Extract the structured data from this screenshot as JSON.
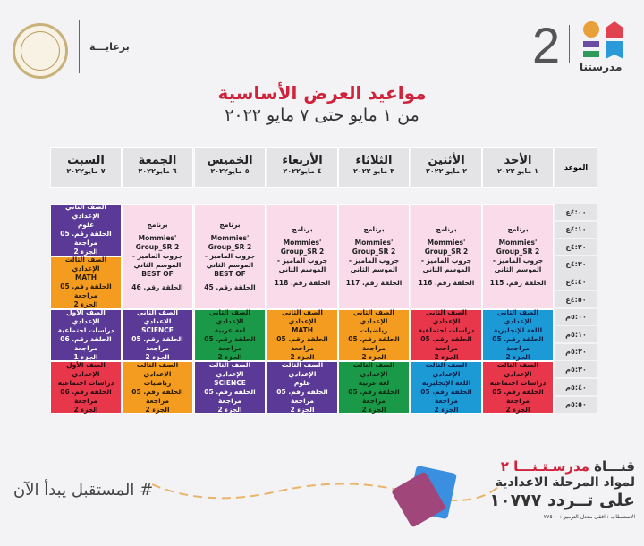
{
  "header": {
    "logo_number": "2",
    "brand": "مدرستنا",
    "sponsor": "برعايـــة",
    "title": "مواعيد العرض الأساسية",
    "subtitle": "من ١ مايو حتى ٧ مايو ٢٠٢٢"
  },
  "colors": {
    "title": "#d0223a",
    "pink": "#f9dbe9",
    "blue": "#1c9ad6",
    "red": "#e8374a",
    "orange": "#f39c1f",
    "green": "#1a9a48",
    "purple": "#5b3a97"
  },
  "table": {
    "time_header": "الموعد",
    "days": [
      {
        "name": "الأحد",
        "date": "١ مايو ٢٠٢٢"
      },
      {
        "name": "الأثنين",
        "date": "٢ مايو ٢٠٢٢"
      },
      {
        "name": "الثلاثاء",
        "date": "٣ مايو ٢٠٢٢"
      },
      {
        "name": "الأربعاء",
        "date": "٤ مايو٢٠٢٢"
      },
      {
        "name": "الخميس",
        "date": "٥ مايو٢٠٢٢"
      },
      {
        "name": "الجمعة",
        "date": "٦ مايو٢٠٢٢"
      },
      {
        "name": "السبت",
        "date": "٧ مايو٢٠٢٢"
      }
    ],
    "times": [
      "٤:٠٠ع",
      "٤:١٠ع",
      "٤:٢٠ع",
      "٤:٣٠ع",
      "٤:٤٠ع",
      "٤:٥٠ع",
      "٥:٠٠م",
      "٥:١٠م",
      "٥:٢٠م",
      "٥:٣٠م",
      "٥:٤٠م",
      "٥:٥٠م"
    ],
    "cells": [
      {
        "day": 0,
        "row": 0,
        "span": 6,
        "color": "pink",
        "lines": [
          "برنامج",
          "Mommies' Group_SR 2",
          "جروب الماميز - الموسم الثاني",
          "الحلقة رقم. 115"
        ]
      },
      {
        "day": 1,
        "row": 0,
        "span": 6,
        "color": "pink",
        "lines": [
          "برنامج",
          "Mommies' Group_SR 2",
          "جروب الماميز - الموسم الثاني",
          "الحلقة رقم. 116"
        ]
      },
      {
        "day": 2,
        "row": 0,
        "span": 6,
        "color": "pink",
        "lines": [
          "برنامج",
          "Mommies' Group_SR 2",
          "جروب الماميز - الموسم الثاني",
          "الحلقة رقم. 117"
        ]
      },
      {
        "day": 3,
        "row": 0,
        "span": 6,
        "color": "pink",
        "lines": [
          "برنامج",
          "Mommies' Group_SR 2",
          "جروب الماميز - الموسم الثاني",
          "الحلقة رقم. 118"
        ]
      },
      {
        "day": 4,
        "row": 0,
        "span": 6,
        "color": "pink",
        "lines": [
          "برنامج",
          "Mommies' Group_SR 2",
          "جروب الماميز - الموسم الثاني",
          "BEST OF",
          "الحلقة رقم. 45"
        ]
      },
      {
        "day": 5,
        "row": 0,
        "span": 6,
        "color": "pink",
        "lines": [
          "برنامج",
          "Mommies' Group_SR 2",
          "جروب الماميز - الموسم الثاني",
          "BEST OF",
          "الحلقة رقم. 46"
        ]
      },
      {
        "day": 6,
        "row": 0,
        "span": 3,
        "color": "purple",
        "lines": [
          "الصف الثاني الإعدادي",
          "علوم",
          "الحلقة رقم. 05 مراجعة",
          "الجزء 2"
        ]
      },
      {
        "day": 6,
        "row": 3,
        "span": 3,
        "color": "orange",
        "lines": [
          "الصف الثالث الإعدادي",
          "MATH",
          "الحلقة رقم. 05 مراجعة",
          "الجزء 2"
        ]
      },
      {
        "day": 0,
        "row": 6,
        "span": 3,
        "color": "blue",
        "lines": [
          "الصف الثاني الإعدادي",
          "اللغة الإنجليزية",
          "الحلقة رقم. 05 مراجعة",
          "الجزء 2"
        ]
      },
      {
        "day": 1,
        "row": 6,
        "span": 3,
        "color": "red",
        "lines": [
          "الصف الثاني الإعدادي",
          "دراسات اجتماعية",
          "الحلقة رقم. 05 مراجعة",
          "الجزء 2"
        ]
      },
      {
        "day": 2,
        "row": 6,
        "span": 3,
        "color": "orange",
        "lines": [
          "الصف الثاني الإعدادي",
          "رياضيات",
          "الحلقة رقم. 05 مراجعة",
          "الجزء 2"
        ]
      },
      {
        "day": 3,
        "row": 6,
        "span": 3,
        "color": "orange",
        "lines": [
          "الصف الثاني الإعدادي",
          "MATH",
          "الحلقة رقم. 05 مراجعة",
          "الجزء 2"
        ]
      },
      {
        "day": 4,
        "row": 6,
        "span": 3,
        "color": "green",
        "lines": [
          "الصف الثاني الإعدادي",
          "لغة عربية",
          "الحلقة رقم. 05 مراجعة",
          "الجزء 2"
        ]
      },
      {
        "day": 5,
        "row": 6,
        "span": 3,
        "color": "purple",
        "lines": [
          "الصف الثاني الإعدادي",
          "SCIENCE",
          "الحلقة رقم. 05 مراجعة",
          "الجزء 2"
        ]
      },
      {
        "day": 6,
        "row": 6,
        "span": 3,
        "color": "purple",
        "lines": [
          "الصف الأول الإعدادي",
          "دراسات اجتماعية",
          "الحلقة رقم. 06 مراجعة",
          "الجزء 1"
        ]
      },
      {
        "day": 0,
        "row": 9,
        "span": 3,
        "color": "red",
        "lines": [
          "الصف الثالث الإعدادي",
          "دراسات اجتماعية",
          "الحلقة رقم. 05 مراجعة",
          "الجزء 2"
        ]
      },
      {
        "day": 1,
        "row": 9,
        "span": 3,
        "color": "blue",
        "lines": [
          "الصف الثالث الإعدادي",
          "اللغة الإنجليزية",
          "الحلقة رقم. 05 مراجعة",
          "الجزء 2"
        ]
      },
      {
        "day": 2,
        "row": 9,
        "span": 3,
        "color": "green",
        "lines": [
          "الصف الثالث الإعدادي",
          "لغة عربية",
          "الحلقة رقم. 05 مراجعة",
          "الجزء 2"
        ]
      },
      {
        "day": 3,
        "row": 9,
        "span": 3,
        "color": "purple",
        "lines": [
          "الصف الثالث الإعدادي",
          "علوم",
          "الحلقة رقم. 05 مراجعة",
          "الجزء 2"
        ]
      },
      {
        "day": 4,
        "row": 9,
        "span": 3,
        "color": "purple",
        "lines": [
          "الصف الثالث الإعدادي",
          "SCIENCE",
          "الحلقة رقم. 05 مراجعة",
          "الجزء 2"
        ]
      },
      {
        "day": 5,
        "row": 9,
        "span": 3,
        "color": "orange",
        "lines": [
          "الصف الثالث الإعدادي",
          "رياضيات",
          "الحلقة رقم. 05 مراجعة",
          "الجزء 2"
        ]
      },
      {
        "day": 6,
        "row": 9,
        "span": 3,
        "color": "red",
        "lines": [
          "الصف الأول الإعدادي",
          "دراسات اجتماعية",
          "الحلقة رقم. 06 مراجعة",
          "الجزء 2"
        ]
      }
    ]
  },
  "footer": {
    "channel_prefix": "قنـــاة",
    "channel_name": "مدرسـتـنـــا ٢",
    "line2": "لمواد المرحلة الاعدادية",
    "line3": "على تــردد ١٠٧٧٧",
    "line4": "الاستقطاب : افقى معدل الترميز : ٢٧٥٠٠",
    "hashtag": "# المستقبل يبدأ الآن"
  }
}
